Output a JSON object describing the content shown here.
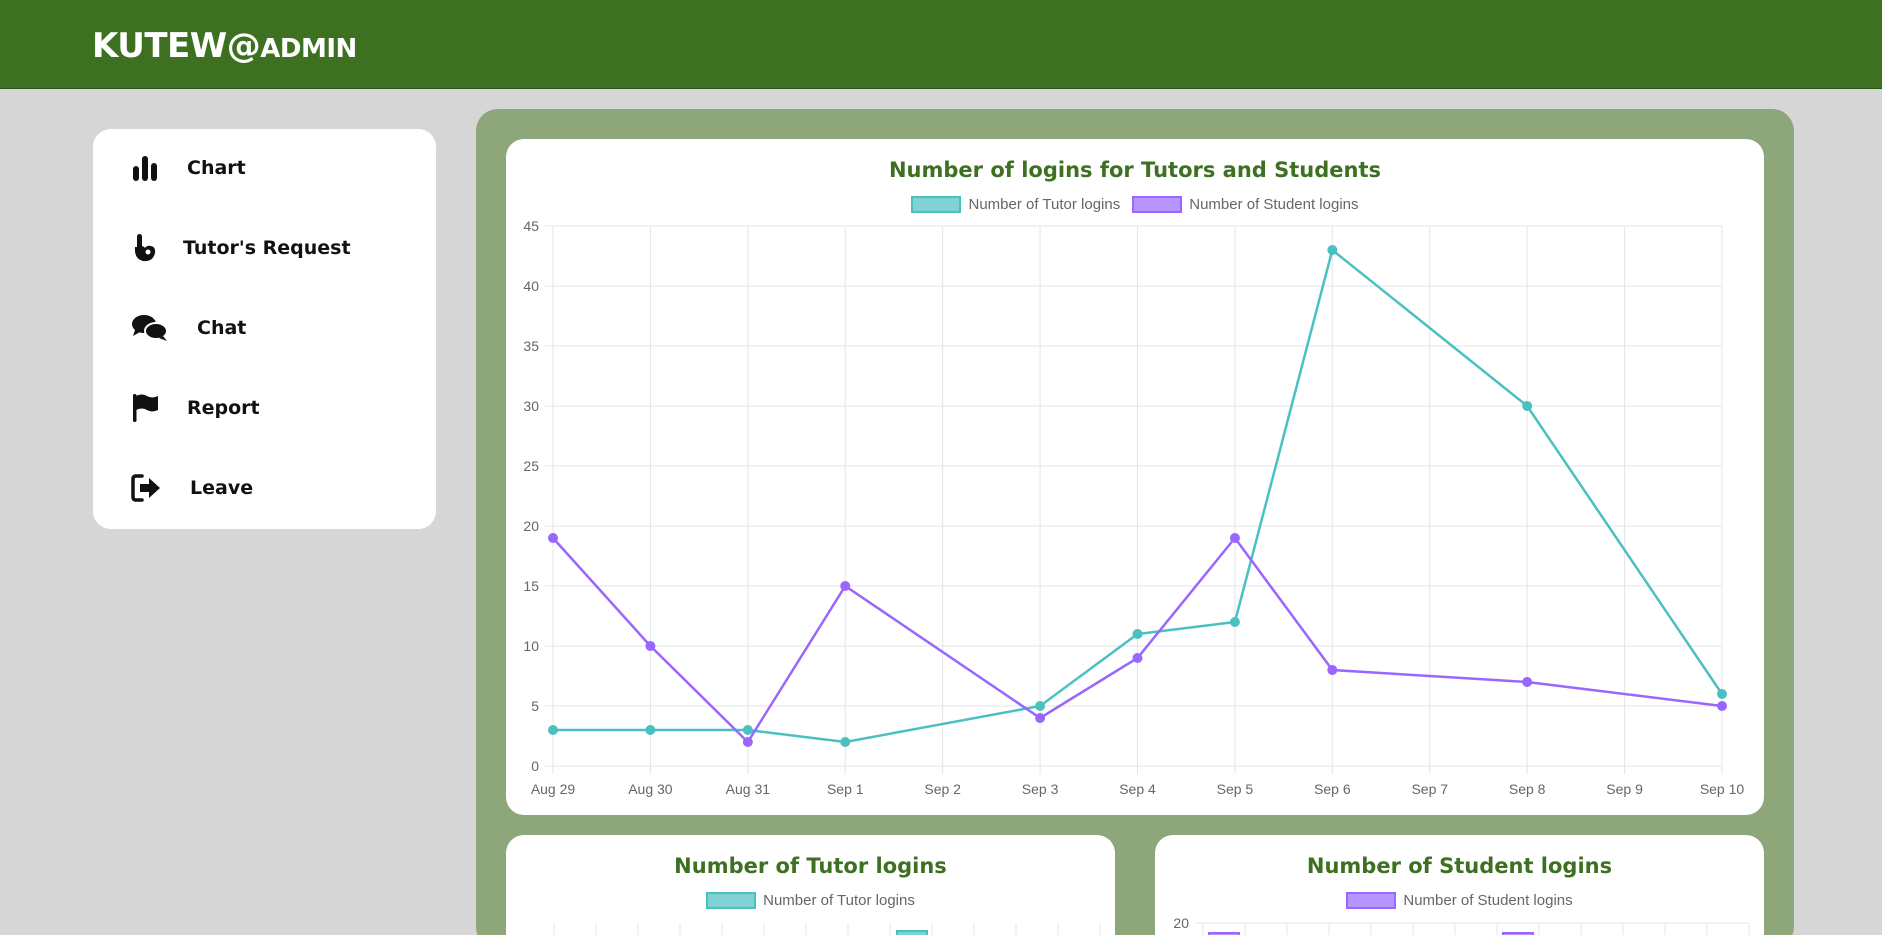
{
  "app": {
    "brand_main": "KUTEW@",
    "brand_sub": "ADMIN",
    "accent_color": "#3e7021"
  },
  "sidebar": {
    "items": [
      {
        "label": "Chart",
        "icon": "bar-chart-icon"
      },
      {
        "label": "Tutor's Request",
        "icon": "hand-pointer-icon"
      },
      {
        "label": "Chat",
        "icon": "chat-bubbles-icon"
      },
      {
        "label": "Report",
        "icon": "flag-icon"
      },
      {
        "label": "Leave",
        "icon": "sign-out-icon"
      }
    ]
  },
  "main_chart": {
    "title": "Number of logins for Tutors and Students",
    "legend": [
      "Number of Tutor logins",
      "Number of Student logins"
    ]
  },
  "tutor_chart": {
    "title": "Number of Tutor logins",
    "legend": "Number of Tutor logins"
  },
  "student_chart": {
    "title": "Number of Student logins",
    "legend": "Number of Student logins",
    "first_tick": "20"
  },
  "chart_data": {
    "type": "line",
    "title": "Number of logins for Tutors and Students",
    "xlabel": "",
    "ylabel": "",
    "x": [
      "Aug 29",
      "Aug 30",
      "Aug 31",
      "Sep 1",
      "Sep 2",
      "Sep 3",
      "Sep 4",
      "Sep 5",
      "Sep 6",
      "Sep 7",
      "Sep 8",
      "Sep 9",
      "Sep 10"
    ],
    "ylim": [
      0,
      45
    ],
    "yticks": [
      0,
      5,
      10,
      15,
      20,
      25,
      30,
      35,
      40,
      45
    ],
    "grid": true,
    "legend_position": "top",
    "series": [
      {
        "name": "Number of Tutor logins",
        "color": "#4bc0c0",
        "points": [
          {
            "x": "Aug 29",
            "y": 3
          },
          {
            "x": "Aug 30",
            "y": 3
          },
          {
            "x": "Aug 31",
            "y": 3
          },
          {
            "x": "Sep 1",
            "y": 2
          },
          {
            "x": "Sep 3",
            "y": 5
          },
          {
            "x": "Sep 4",
            "y": 11
          },
          {
            "x": "Sep 5",
            "y": 12
          },
          {
            "x": "Sep 6",
            "y": 43
          },
          {
            "x": "Sep 8",
            "y": 30
          },
          {
            "x": "Sep 10",
            "y": 6
          }
        ]
      },
      {
        "name": "Number of Student logins",
        "color": "#9966ff",
        "points": [
          {
            "x": "Aug 29",
            "y": 19
          },
          {
            "x": "Aug 30",
            "y": 10
          },
          {
            "x": "Aug 31",
            "y": 2
          },
          {
            "x": "Sep 1",
            "y": 15
          },
          {
            "x": "Sep 3",
            "y": 4
          },
          {
            "x": "Sep 4",
            "y": 9
          },
          {
            "x": "Sep 5",
            "y": 19
          },
          {
            "x": "Sep 6",
            "y": 8
          },
          {
            "x": "Sep 8",
            "y": 7
          },
          {
            "x": "Sep 10",
            "y": 5
          }
        ]
      }
    ]
  }
}
